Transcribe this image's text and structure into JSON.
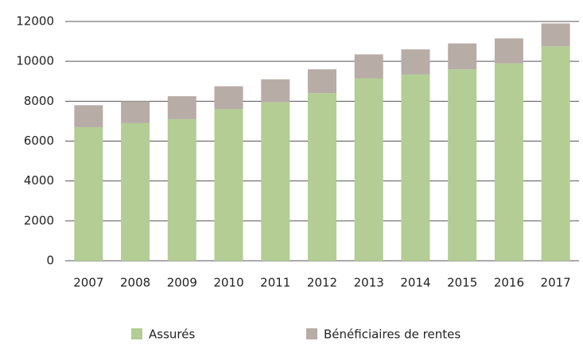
{
  "chart_data": {
    "type": "stacked-bar",
    "categories": [
      "2007",
      "2008",
      "2009",
      "2010",
      "2011",
      "2012",
      "2013",
      "2014",
      "2015",
      "2016",
      "2017"
    ],
    "series": [
      {
        "name": "Assurés",
        "color": "#b3cd94",
        "values": [
          6700,
          6900,
          7100,
          7600,
          7950,
          8400,
          9150,
          9350,
          9600,
          9900,
          10750
        ]
      },
      {
        "name": "Bénéficiaires de rentes",
        "color": "#b8aca7",
        "values": [
          1100,
          1100,
          1150,
          1150,
          1150,
          1200,
          1200,
          1250,
          1300,
          1250,
          1150
        ]
      }
    ],
    "ylim": [
      0,
      12000
    ],
    "yticks": [
      0,
      2000,
      4000,
      6000,
      8000,
      10000,
      12000
    ],
    "grid": true,
    "legend": "bottom"
  }
}
